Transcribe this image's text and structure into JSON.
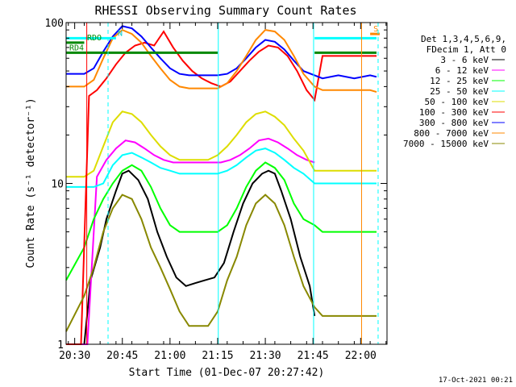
{
  "chart_data": {
    "type": "line",
    "title": "RHESSI Observing Summary Count Rates",
    "xlabel": "Start Time (01-Dec-07 20:27:42)",
    "ylabel": "Count Rate (s⁻¹ detector⁻¹)",
    "yscale": "log",
    "ylim": [
      1,
      100
    ],
    "xlim_minutes": [
      -2.7,
      98.3
    ],
    "x_tick_labels": [
      "20:30",
      "20:45",
      "21:00",
      "21:15",
      "21:30",
      "21:45",
      "22:00"
    ],
    "x_tick_minutes": [
      0,
      15,
      30,
      45,
      60,
      75,
      90
    ],
    "y_tick_labels": [
      "1",
      "10",
      "100"
    ],
    "y_tick_values": [
      1,
      10,
      100
    ],
    "legend_header": [
      "Det 1,3,4,5,6,9,",
      "FDecim 1, Att 0"
    ],
    "legend_position": "right",
    "timestamp": "17-Oct-2021 00:21",
    "series": [
      {
        "name": "3 - 6 keV",
        "color": "#000000",
        "x": [
          -2.7,
          3,
          5,
          8,
          10,
          13,
          15,
          17,
          20,
          23,
          26,
          29,
          32,
          35,
          38,
          41,
          44,
          47,
          50,
          53,
          56,
          59,
          61,
          63,
          65,
          68,
          71,
          74,
          75.5
        ],
        "y": [
          1,
          1,
          2.5,
          4,
          6,
          9,
          11.5,
          12,
          10.5,
          8,
          5,
          3.5,
          2.6,
          2.3,
          2.4,
          2.5,
          2.6,
          3.2,
          5,
          7.5,
          10,
          11.5,
          12,
          11.5,
          9,
          6,
          3.5,
          2.3,
          1.5
        ]
      },
      {
        "name": "6 - 12 keV",
        "color": "#ff00ff",
        "x": [
          -2.7,
          2,
          4,
          7,
          10,
          13,
          16,
          19,
          22,
          25,
          28,
          31,
          34,
          37,
          40,
          43,
          46,
          49,
          52,
          55,
          58,
          61,
          64,
          67,
          70,
          73,
          75.5
        ],
        "y": [
          1,
          1,
          1,
          11,
          14,
          16.5,
          18.5,
          18,
          16.5,
          15,
          14,
          13.5,
          13.5,
          13.5,
          13.5,
          13.5,
          13.5,
          14,
          15,
          16.5,
          18.5,
          19,
          18,
          16.5,
          15,
          14,
          13.5
        ]
      },
      {
        "name": "12 - 25 keV",
        "color": "#00ff00",
        "x": [
          -2.7,
          3,
          6,
          9,
          12,
          15,
          18,
          21,
          24,
          27,
          30,
          33,
          36,
          39,
          42,
          45,
          48,
          51,
          54,
          57,
          60,
          63,
          66,
          69,
          72,
          75.5,
          78,
          83,
          88,
          93,
          95
        ],
        "y": [
          2.5,
          4,
          6,
          8,
          10,
          12,
          13,
          12,
          9.5,
          7,
          5.5,
          5,
          5,
          5,
          5,
          5,
          5.5,
          7,
          9.5,
          12,
          13.5,
          12.5,
          10.5,
          7.5,
          6,
          5.5,
          5,
          5,
          5,
          5,
          5
        ]
      },
      {
        "name": "25 - 50 keV",
        "color": "#00ffff",
        "x": [
          -2.7,
          3,
          6,
          9,
          12,
          15,
          18,
          21,
          24,
          27,
          30,
          33,
          36,
          39,
          42,
          45,
          48,
          51,
          54,
          57,
          60,
          63,
          66,
          69,
          72,
          75.5,
          78,
          83,
          88,
          93,
          95
        ],
        "y": [
          9.5,
          9.5,
          9.5,
          10,
          13,
          15,
          15.5,
          14.5,
          13.5,
          12.5,
          12,
          11.5,
          11.5,
          11.5,
          11.5,
          11.5,
          12,
          13,
          14.5,
          16,
          16.5,
          15.5,
          14,
          12.5,
          11.5,
          10,
          10,
          10,
          10,
          10,
          10
        ]
      },
      {
        "name": "50 - 100 keV",
        "color": "#dddd00",
        "x": [
          -2.7,
          3,
          6,
          9,
          12,
          15,
          18,
          21,
          24,
          27,
          30,
          33,
          36,
          39,
          42,
          45,
          48,
          51,
          54,
          57,
          60,
          63,
          66,
          69,
          72,
          75.5,
          78,
          83,
          88,
          93,
          95
        ],
        "y": [
          11,
          11,
          12,
          17,
          24,
          28,
          27,
          24,
          20,
          17,
          15,
          14,
          14,
          14,
          14,
          15,
          17,
          20,
          24,
          27,
          28,
          26,
          23,
          19,
          16,
          12,
          12,
          12,
          12,
          12,
          12
        ]
      },
      {
        "name": "100 - 300 keV",
        "color": "#ff0000",
        "x": [
          -2.7,
          2,
          4.5,
          7,
          10,
          13,
          16,
          19,
          22,
          25,
          28,
          31,
          34,
          37,
          40,
          43,
          46,
          49,
          52,
          55,
          58,
          61,
          64,
          67,
          70,
          73,
          75.5,
          78,
          83,
          88,
          93,
          95
        ],
        "y": [
          1,
          1,
          35,
          38,
          45,
          55,
          65,
          72,
          75,
          72,
          88,
          70,
          58,
          50,
          45,
          42,
          40,
          43,
          50,
          58,
          66,
          72,
          70,
          62,
          50,
          38,
          33,
          62,
          62,
          62,
          62,
          62
        ]
      },
      {
        "name": "300 - 800 keV",
        "color": "#0000ff",
        "x": [
          -2.7,
          3,
          6,
          9,
          12,
          15,
          18,
          21,
          24,
          27,
          30,
          33,
          36,
          39,
          42,
          45,
          48,
          51,
          54,
          57,
          60,
          63,
          66,
          69,
          72,
          75.5,
          78,
          83,
          88,
          93,
          95
        ],
        "y": [
          48,
          48,
          52,
          66,
          82,
          95,
          92,
          82,
          70,
          60,
          52,
          48,
          47,
          47,
          47,
          47,
          48,
          52,
          60,
          70,
          78,
          76,
          68,
          58,
          50,
          47,
          45,
          47,
          45,
          47,
          46
        ]
      },
      {
        "name": "800 - 7000 keV",
        "color": "#ff8800",
        "x": [
          -2.7,
          3,
          6,
          9,
          12,
          15,
          18,
          21,
          24,
          27,
          30,
          33,
          36,
          39,
          42,
          45,
          48,
          51,
          54,
          57,
          60,
          63,
          66,
          69,
          72,
          75.5,
          78,
          83,
          88,
          93,
          95
        ],
        "y": [
          40,
          40,
          44,
          60,
          80,
          90,
          85,
          75,
          62,
          52,
          44,
          40,
          39,
          39,
          39,
          39,
          42,
          50,
          62,
          78,
          90,
          88,
          78,
          62,
          48,
          40,
          38,
          38,
          38,
          38,
          37
        ]
      },
      {
        "name": "7000 - 15000 keV",
        "color": "#888800",
        "x": [
          -2.7,
          3,
          6,
          9,
          12,
          15,
          18,
          21,
          24,
          27,
          30,
          33,
          36,
          39,
          42,
          45,
          48,
          51,
          54,
          57,
          60,
          63,
          66,
          69,
          72,
          75.5,
          78,
          83,
          88,
          93,
          95
        ],
        "y": [
          1.2,
          2,
          3,
          5,
          7,
          8.5,
          8,
          6,
          4,
          3,
          2.2,
          1.6,
          1.3,
          1.3,
          1.3,
          1.6,
          2.5,
          3.5,
          5.5,
          7.5,
          8.5,
          7.5,
          5.5,
          3.5,
          2.3,
          1.7,
          1.5,
          1.5,
          1.5,
          1.5,
          1.5
        ]
      }
    ],
    "annotations": [
      {
        "label": "RD4",
        "color": "#008800"
      },
      {
        "label": "RDO",
        "color": "#008800"
      },
      {
        "label": "N",
        "color": "#00cccc"
      },
      {
        "label": "S",
        "color": "#ff8800"
      }
    ],
    "flag_bars": [
      {
        "label": "RD4",
        "color": "#008800",
        "y": 65,
        "segments": [
          [
            -2.7,
            45
          ],
          [
            75.5,
            95
          ]
        ]
      },
      {
        "label": "RDO",
        "color": "#008800",
        "y": 75,
        "segments": [
          [
            -2.7,
            3
          ]
        ]
      },
      {
        "label": "N",
        "color": "#00ffff",
        "y": 80,
        "segments": [
          [
            -2.7,
            13
          ],
          [
            75.5,
            95
          ]
        ]
      },
      {
        "label": "S",
        "color": "#ff8800",
        "y": 85,
        "segments": [
          [
            93,
            96
          ]
        ]
      }
    ],
    "vertical_markers": [
      {
        "x": 3.8,
        "color": "#ff0000",
        "style": "solid"
      },
      {
        "x": 10.5,
        "color": "#00ffff",
        "style": "dashed"
      },
      {
        "x": 45.2,
        "color": "#00ffff",
        "style": "solid"
      },
      {
        "x": 75.2,
        "color": "#00ffff",
        "style": "solid"
      },
      {
        "x": 90.3,
        "color": "#ff8800",
        "style": "solid"
      },
      {
        "x": 95.5,
        "color": "#00ffff",
        "style": "dashed"
      }
    ]
  }
}
